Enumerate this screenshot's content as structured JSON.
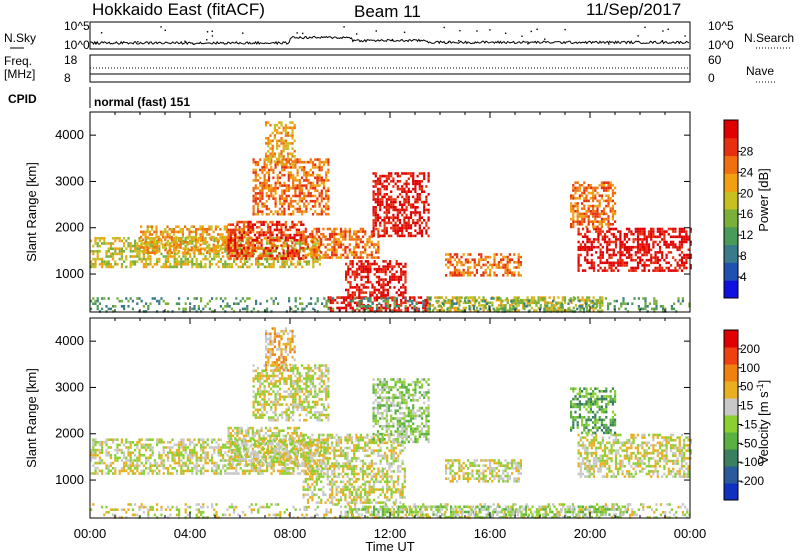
{
  "header": {
    "station": "Hokkaido East (fitACF)",
    "beam": "Beam 11",
    "date": "11/Sep/2017"
  },
  "noise_panel": {
    "left_label": "N.Sky",
    "right_label": "N.Search",
    "ticks_left": [
      "10^5",
      "10^0"
    ],
    "ticks_right": [
      "10^5",
      "10^0"
    ]
  },
  "freq_panel": {
    "left_label_1": "Freq.",
    "left_label_2": "[MHz]",
    "right_label": "Nave",
    "ticks_left": [
      "18",
      "8"
    ],
    "ticks_right": [
      "60",
      "0"
    ]
  },
  "cpid_panel": {
    "label": "CPID",
    "value": "normal (fast) 151"
  },
  "chart_data": [
    {
      "type": "heatmap",
      "name": "power",
      "ylabel": "Slant Range [km]",
      "y_ticks": [
        1000,
        2000,
        3000,
        4000
      ],
      "ylim": [
        180,
        4500
      ],
      "x_ticks": [
        "00:00",
        "04:00",
        "08:00",
        "12:00",
        "16:00",
        "20:00",
        "00:00"
      ],
      "xlim_hours": [
        0,
        24
      ],
      "colorbar": {
        "label": "Power [dB]",
        "ticks": [
          "4",
          "8",
          "12",
          "16",
          "20",
          "24",
          "28"
        ],
        "colors": [
          "#1010e0",
          "#2050b0",
          "#3a7a8a",
          "#4a9a5a",
          "#7ab03a",
          "#c8c020",
          "#f0a010",
          "#f07010",
          "#e83010",
          "#e00000"
        ]
      },
      "regions": [
        {
          "t0": 0.0,
          "t1": 9.2,
          "r0": 1150,
          "r1": 1800,
          "level": 5
        },
        {
          "t0": 2.0,
          "t1": 6.5,
          "r0": 1450,
          "r1": 2050,
          "level": 6
        },
        {
          "t0": 5.5,
          "t1": 8.5,
          "r0": 1350,
          "r1": 2150,
          "level": 8
        },
        {
          "t0": 6.5,
          "t1": 9.5,
          "r0": 2300,
          "r1": 3500,
          "level": 7
        },
        {
          "t0": 7.0,
          "t1": 8.2,
          "r0": 3400,
          "r1": 4300,
          "level": 6
        },
        {
          "t0": 8.5,
          "t1": 11.5,
          "r0": 1350,
          "r1": 2000,
          "level": 7
        },
        {
          "t0": 10.2,
          "t1": 12.6,
          "r0": 500,
          "r1": 1300,
          "level": 9
        },
        {
          "t0": 11.3,
          "t1": 13.5,
          "r0": 1800,
          "r1": 3200,
          "level": 9
        },
        {
          "t0": 9.5,
          "t1": 13.5,
          "r0": 200,
          "r1": 520,
          "level": 9
        },
        {
          "t0": 13.5,
          "t1": 20.5,
          "r0": 200,
          "r1": 520,
          "level": 5
        },
        {
          "t0": 14.2,
          "t1": 17.2,
          "r0": 950,
          "r1": 1450,
          "level": 7
        },
        {
          "t0": 19.5,
          "t1": 24.0,
          "r0": 1050,
          "r1": 2000,
          "level": 9
        },
        {
          "t0": 19.2,
          "t1": 21.0,
          "r0": 2000,
          "r1": 3000,
          "level": 7
        },
        {
          "t0": 0.0,
          "t1": 24.0,
          "r0": 180,
          "r1": 500,
          "level": 3
        }
      ]
    },
    {
      "type": "heatmap",
      "name": "velocity",
      "ylabel": "Slant Range [km]",
      "y_ticks": [
        1000,
        2000,
        3000,
        4000
      ],
      "ylim": [
        180,
        4500
      ],
      "x_ticks": [
        "00:00",
        "04:00",
        "08:00",
        "12:00",
        "16:00",
        "20:00",
        "00:00"
      ],
      "xlim_hours": [
        0,
        24
      ],
      "xlabel": "Time UT",
      "colorbar": {
        "label": "Velocity [m s^-1]",
        "ticks": [
          "200",
          "100",
          "50",
          "15",
          "-15",
          "-50",
          "-100",
          "-200"
        ],
        "colors": [
          "#1030c0",
          "#2a5a9a",
          "#3a8060",
          "#5ab040",
          "#8ad030",
          "#c8c8c8",
          "#e8b020",
          "#f08010",
          "#f04010",
          "#e00000"
        ]
      },
      "regions": [
        {
          "t0": 0.0,
          "t1": 9.5,
          "r0": 1150,
          "r1": 1900,
          "level": 5
        },
        {
          "t0": 5.5,
          "t1": 8.5,
          "r0": 1350,
          "r1": 2150,
          "level": 5
        },
        {
          "t0": 6.5,
          "t1": 9.5,
          "r0": 2300,
          "r1": 3500,
          "level": 5
        },
        {
          "t0": 7.0,
          "t1": 8.2,
          "r0": 3400,
          "r1": 4300,
          "level": 6
        },
        {
          "t0": 8.5,
          "t1": 12.6,
          "r0": 500,
          "r1": 2000,
          "level": 5
        },
        {
          "t0": 11.3,
          "t1": 13.5,
          "r0": 1800,
          "r1": 3200,
          "level": 4
        },
        {
          "t0": 10.0,
          "t1": 21.5,
          "r0": 200,
          "r1": 450,
          "level": 4
        },
        {
          "t0": 14.2,
          "t1": 17.2,
          "r0": 950,
          "r1": 1450,
          "level": 5
        },
        {
          "t0": 19.5,
          "t1": 24.0,
          "r0": 1050,
          "r1": 2000,
          "level": 5
        },
        {
          "t0": 19.2,
          "t1": 21.0,
          "r0": 2000,
          "r1": 3000,
          "level": 3
        },
        {
          "t0": 0.0,
          "t1": 24.0,
          "r0": 180,
          "r1": 500,
          "level": 5
        }
      ]
    }
  ],
  "nsky_series": [
    {
      "t0": 0.0,
      "t1": 8.0,
      "level": 0.15
    },
    {
      "t0": 8.0,
      "t1": 10.5,
      "level": 0.6
    },
    {
      "t0": 10.5,
      "t1": 13.5,
      "level": 0.35
    },
    {
      "t0": 13.5,
      "t1": 24.0,
      "level": 0.2
    }
  ]
}
